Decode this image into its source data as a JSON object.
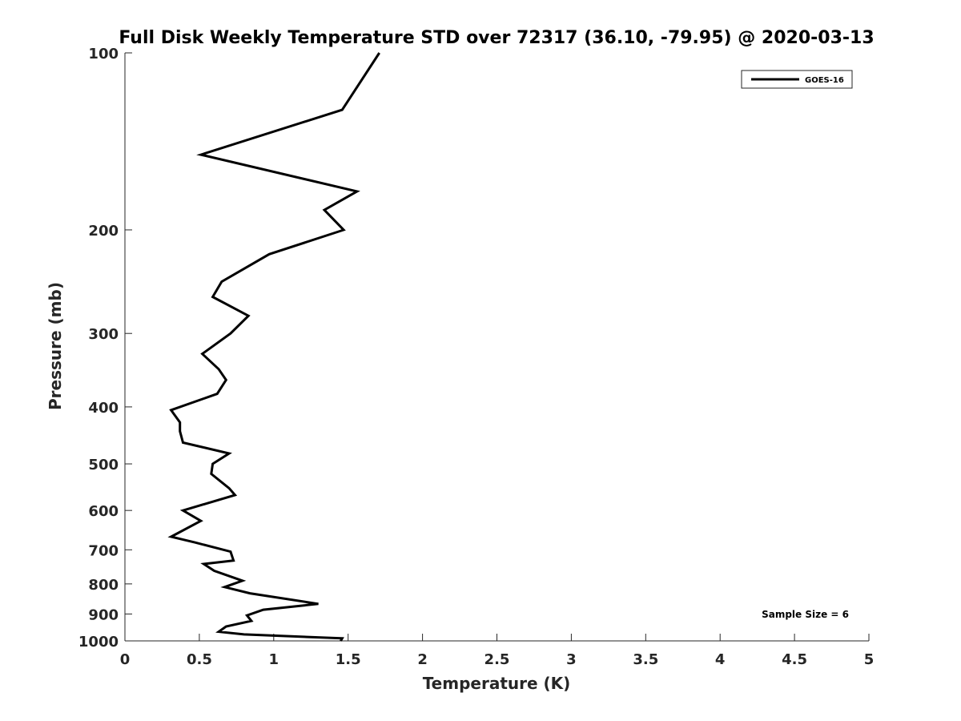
{
  "chart_data": {
    "type": "line",
    "title": "Full Disk Weekly Temperature STD over 72317 (36.10, -79.95) @ 2020-03-13",
    "xlabel": "Temperature (K)",
    "ylabel": "Pressure (mb)",
    "xlim": [
      0,
      5
    ],
    "ylim": [
      100,
      1000
    ],
    "y_scale": "log",
    "y_reversed": true,
    "grid": false,
    "legend_position": "top-right",
    "x_ticks": [
      0,
      0.5,
      1,
      1.5,
      2,
      2.5,
      3,
      3.5,
      4,
      4.5,
      5
    ],
    "x_tick_labels": [
      "0",
      "0.5",
      "1",
      "1.5",
      "2",
      "2.5",
      "3",
      "3.5",
      "4",
      "4.5",
      "5"
    ],
    "y_ticks": [
      100,
      200,
      300,
      400,
      500,
      600,
      700,
      800,
      900,
      1000
    ],
    "y_tick_labels": [
      "100",
      "200",
      "300",
      "400",
      "500",
      "600",
      "700",
      "800",
      "900",
      "1000"
    ],
    "annotation": "Sample Size = 6",
    "series": [
      {
        "name": "GOES-16",
        "color": "#000000",
        "x": [
          1.71,
          1.46,
          0.51,
          1.56,
          1.34,
          1.47,
          0.97,
          0.65,
          0.59,
          0.83,
          0.71,
          0.52,
          0.63,
          0.68,
          0.62,
          0.31,
          0.37,
          0.37,
          0.39,
          0.7,
          0.59,
          0.58,
          0.7,
          0.74,
          0.39,
          0.51,
          0.31,
          0.47,
          0.71,
          0.73,
          0.53,
          0.6,
          0.79,
          0.67,
          0.84,
          1.3,
          0.93,
          0.82,
          0.85,
          0.68,
          0.63,
          0.8,
          1.46,
          1.45
        ],
        "y": [
          100,
          125,
          149,
          172,
          185,
          200,
          220,
          245,
          260,
          280,
          300,
          325,
          345,
          360,
          380,
          405,
          425,
          440,
          460,
          480,
          500,
          520,
          550,
          565,
          600,
          625,
          665,
          680,
          705,
          730,
          740,
          760,
          790,
          810,
          830,
          865,
          885,
          905,
          925,
          945,
          965,
          975,
          990,
          1000
        ]
      }
    ]
  }
}
